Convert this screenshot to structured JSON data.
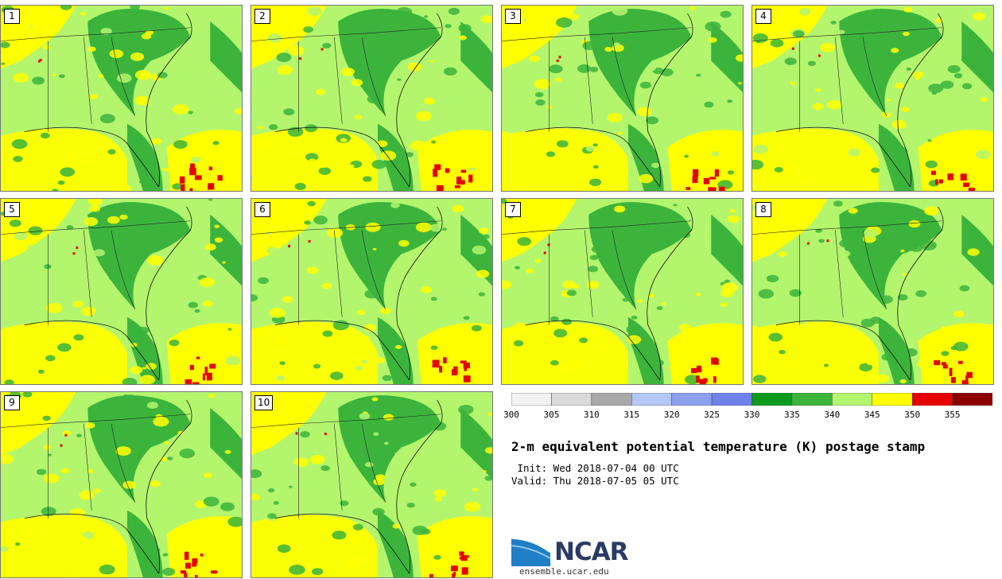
{
  "stamps": [
    {
      "label": "1"
    },
    {
      "label": "2"
    },
    {
      "label": "3"
    },
    {
      "label": "4"
    },
    {
      "label": "5"
    },
    {
      "label": "6"
    },
    {
      "label": "7"
    },
    {
      "label": "8"
    },
    {
      "label": "9"
    },
    {
      "label": "10"
    }
  ],
  "colorbar": {
    "ticks": [
      "300",
      "305",
      "310",
      "315",
      "320",
      "325",
      "330",
      "335",
      "340",
      "345",
      "350",
      "355"
    ],
    "bins": [
      {
        "from": 300,
        "to": 305,
        "color": "#f2f2f2"
      },
      {
        "from": 305,
        "to": 310,
        "color": "#dadada"
      },
      {
        "from": 310,
        "to": 315,
        "color": "#a8a8a8"
      },
      {
        "from": 315,
        "to": 320,
        "color": "#b4c8f5"
      },
      {
        "from": 320,
        "to": 325,
        "color": "#8ca0f0"
      },
      {
        "from": 325,
        "to": 330,
        "color": "#6e82ea"
      },
      {
        "from": 330,
        "to": 335,
        "color": "#0a9c1e"
      },
      {
        "from": 335,
        "to": 340,
        "color": "#3cb43c"
      },
      {
        "from": 340,
        "to": 345,
        "color": "#b4f56e"
      },
      {
        "from": 345,
        "to": 350,
        "color": "#ffff00"
      },
      {
        "from": 350,
        "to": 355,
        "color": "#e60000"
      },
      {
        "from": 355,
        "to": 360,
        "color": "#8c0000"
      }
    ]
  },
  "title": "2-m equivalent potential temperature (K) postage stamp",
  "init": " Init: Wed 2018-07-04 00 UTC",
  "valid": "Valid: Thu 2018-07-05 05 UTC",
  "logo": {
    "text": "NCAR",
    "site": "ensemble.ucar.edu"
  },
  "colors": {
    "ocean_light": "#b4f56e",
    "land_green": "#3cb43c",
    "dark_green": "#0a9c1e",
    "yellow": "#ffff00",
    "red": "#e60000"
  }
}
